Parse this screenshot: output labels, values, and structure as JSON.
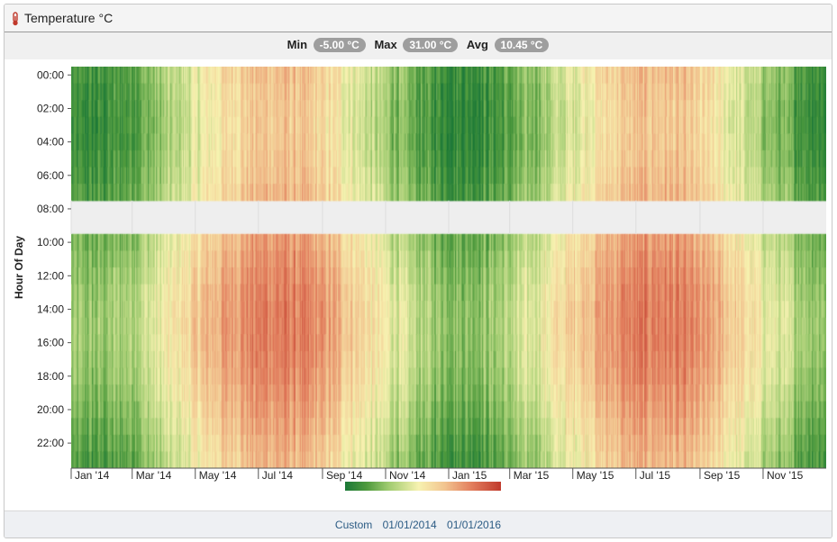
{
  "header": {
    "title": "Temperature °C",
    "icon": "thermometer-icon"
  },
  "stats": {
    "min_label": "Min",
    "min_value": "-5.00 °C",
    "max_label": "Max",
    "max_value": "31.00 °C",
    "avg_label": "Avg",
    "avg_value": "10.45 °C"
  },
  "footer": {
    "range_label": "Custom",
    "start_date": "01/01/2014",
    "end_date": "01/01/2016"
  },
  "chart_data": {
    "type": "heatmap",
    "ylabel": "Hour Of Day",
    "x_range": [
      "2014-01-01",
      "2016-01-01"
    ],
    "x_ticks": [
      "Jan '14",
      "Mar '14",
      "May '14",
      "Jul '14",
      "Sep '14",
      "Nov '14",
      "Jan '15",
      "Mar '15",
      "May '15",
      "Jul '15",
      "Sep '15",
      "Nov '15"
    ],
    "y_ticks": [
      "00:00",
      "02:00",
      "04:00",
      "06:00",
      "08:00",
      "10:00",
      "12:00",
      "14:00",
      "16:00",
      "18:00",
      "20:00",
      "22:00"
    ],
    "missing_hours": [
      8,
      9
    ],
    "color_scale": {
      "ticks": [
        0,
        10,
        20,
        30
      ],
      "stops": [
        {
          "value": -5,
          "color": "#1b7837"
        },
        {
          "value": 0,
          "color": "#4e9a3d"
        },
        {
          "value": 5,
          "color": "#9fcb6f"
        },
        {
          "value": 12,
          "color": "#f7f2b0"
        },
        {
          "value": 18,
          "color": "#f2c48f"
        },
        {
          "value": 24,
          "color": "#e3805f"
        },
        {
          "value": 31,
          "color": "#c0392b"
        }
      ]
    },
    "colors": {
      "grid": "#dddddd",
      "gap": "#eeeeee"
    }
  }
}
